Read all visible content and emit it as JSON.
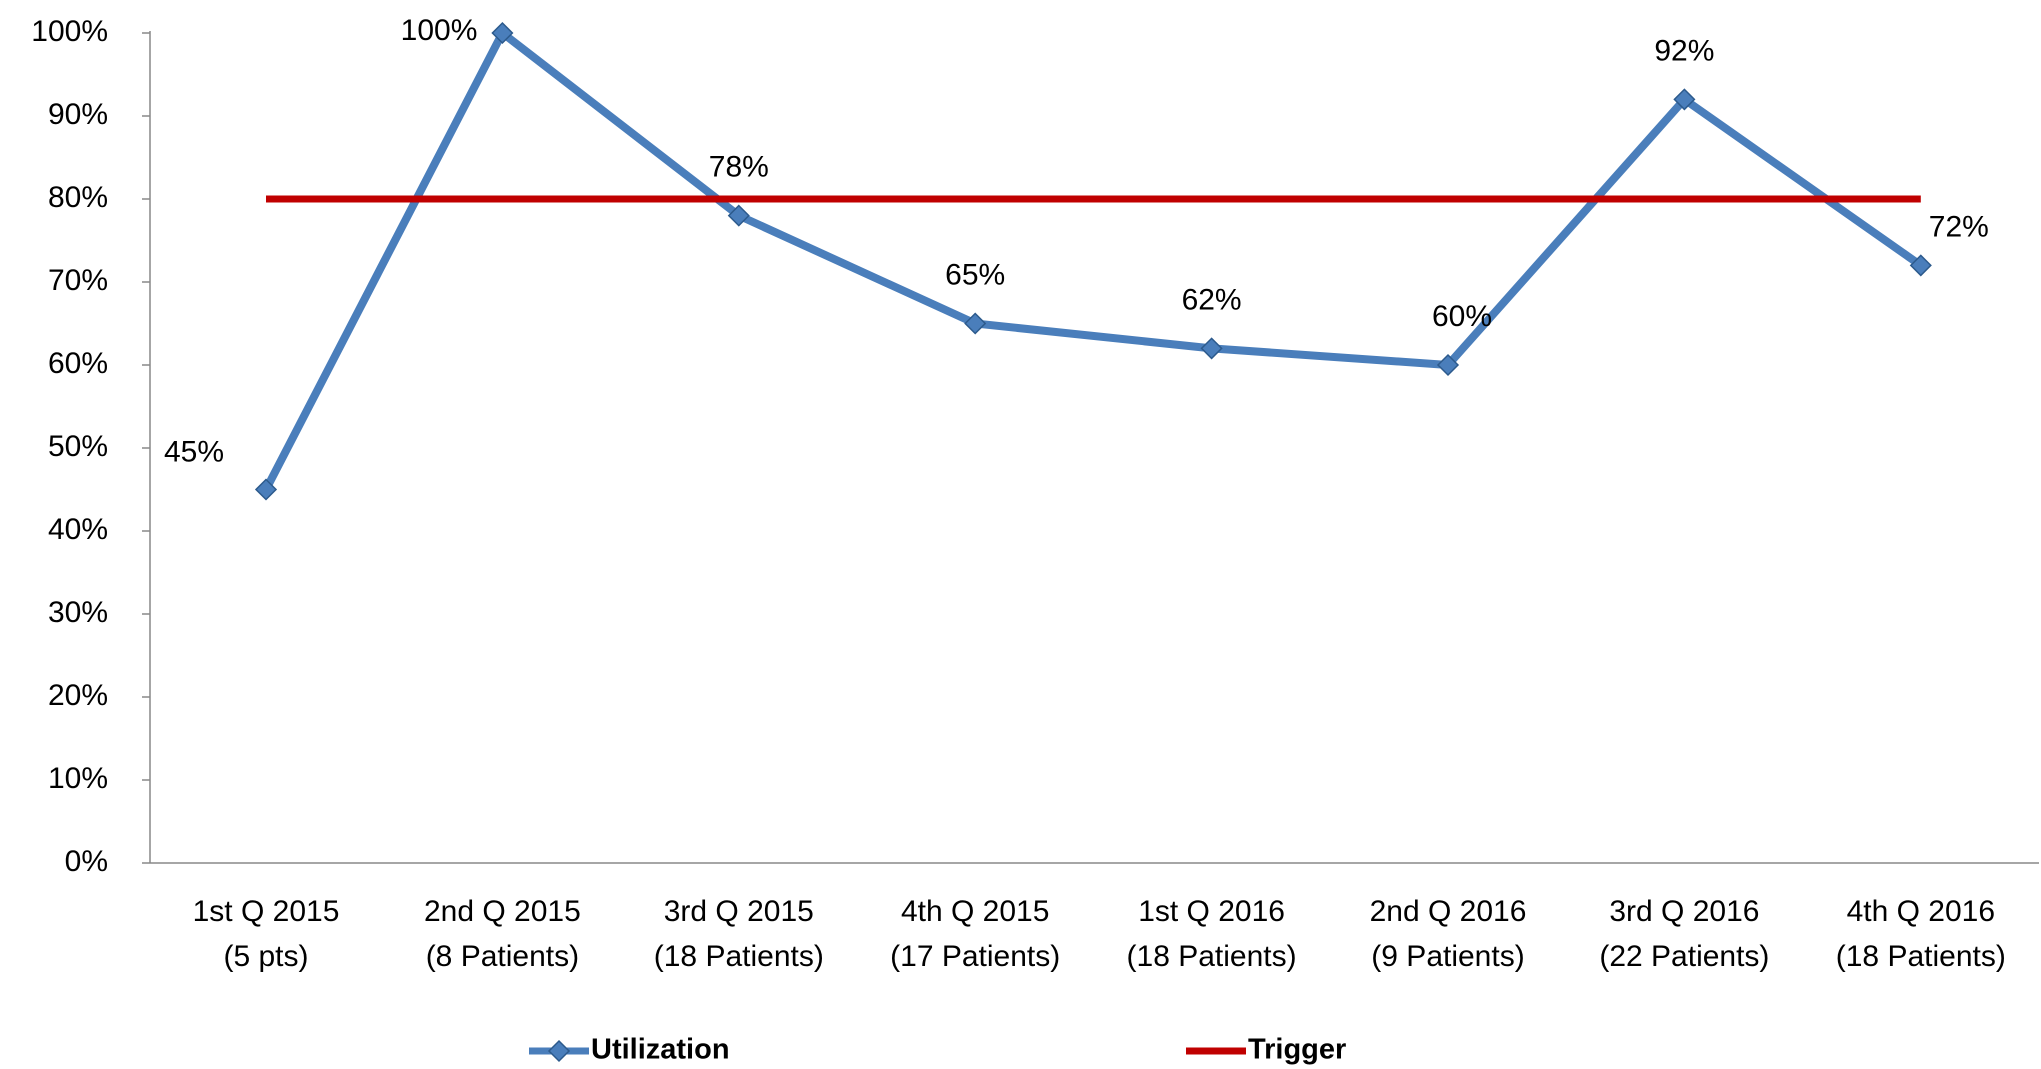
{
  "chart_data": {
    "type": "line",
    "categories": [
      [
        "1st Q 2015",
        "(5 pts)"
      ],
      [
        "2nd Q 2015",
        "(8 Patients)"
      ],
      [
        "3rd Q 2015",
        "(18 Patients)"
      ],
      [
        "4th Q 2015",
        "(17 Patients)"
      ],
      [
        "1st Q 2016",
        "(18 Patients)"
      ],
      [
        "2nd Q 2016",
        "(9 Patients)"
      ],
      [
        "3rd Q 2016",
        "(22 Patients)"
      ],
      [
        "4th Q 2016",
        "(18 Patients)"
      ]
    ],
    "series": [
      {
        "name": "Utilization",
        "color": "#4a7ebb",
        "marker": "diamond",
        "values": [
          45,
          100,
          78,
          65,
          62,
          60,
          92,
          72
        ],
        "value_labels": [
          "45%",
          "100%",
          "78%",
          "65%",
          "62%",
          "60%",
          "92%",
          "72%"
        ]
      },
      {
        "name": "Trigger",
        "color": "#c00000",
        "values": [
          80,
          80,
          80,
          80,
          80,
          80,
          80,
          80
        ]
      }
    ],
    "ylim": [
      0,
      100
    ],
    "yticks": [
      {
        "value": 0,
        "label": "0%"
      },
      {
        "value": 10,
        "label": "10%"
      },
      {
        "value": 20,
        "label": "20%"
      },
      {
        "value": 30,
        "label": "30%"
      },
      {
        "value": 40,
        "label": "40%"
      },
      {
        "value": 50,
        "label": "50%"
      },
      {
        "value": 60,
        "label": "60%"
      },
      {
        "value": 70,
        "label": "70%"
      },
      {
        "value": 80,
        "label": "80%"
      },
      {
        "value": 90,
        "label": "90%"
      },
      {
        "value": 100,
        "label": "100%"
      }
    ],
    "legend": "bottom"
  }
}
